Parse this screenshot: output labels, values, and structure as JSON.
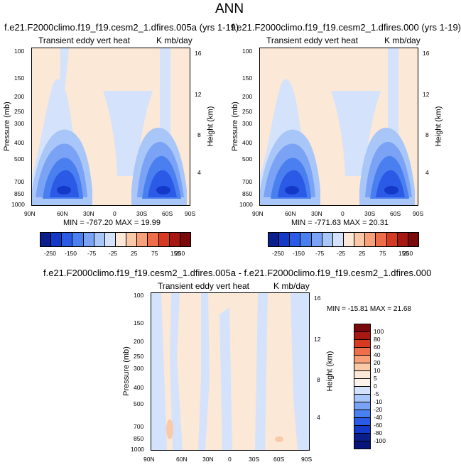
{
  "page_title": "ANN",
  "chart_data": [
    {
      "type": "heatmap",
      "title": "f.e21.F2000climo.f19_f19.cesm2_1.dfires.005a (yrs 1-19)",
      "left_label": "Transient eddy vert heat",
      "right_label": "K mb/day",
      "xlabel": "",
      "ylabel": "Pressure (mb)",
      "y2label": "Height (km)",
      "xticks": [
        "90N",
        "60N",
        "30N",
        "0",
        "30S",
        "60S",
        "90S"
      ],
      "yticks": [
        "100",
        "150",
        "200",
        "250",
        "300",
        "400",
        "500",
        "700",
        "850",
        "1000"
      ],
      "y2ticks": [
        "16",
        "12",
        "8",
        "4"
      ],
      "stats": "MIN = -767.20   MAX = 19.99",
      "min": -767.2,
      "max": 19.99,
      "colorbar_labels": [
        "-250",
        "-150",
        "-75",
        "-25",
        "25",
        "75",
        "150",
        "250"
      ]
    },
    {
      "type": "heatmap",
      "title": "f.e21.F2000climo.f19_f19.cesm2_1.dfires.000 (yrs 1-19)",
      "left_label": "Transient eddy vert heat",
      "right_label": "K mb/day",
      "xlabel": "",
      "ylabel": "Pressure (mb)",
      "y2label": "Height (km)",
      "xticks": [
        "90N",
        "60N",
        "30N",
        "0",
        "30S",
        "60S",
        "90S"
      ],
      "yticks": [
        "100",
        "150",
        "200",
        "250",
        "300",
        "400",
        "500",
        "700",
        "850",
        "1000"
      ],
      "y2ticks": [
        "16",
        "12",
        "8",
        "4"
      ],
      "stats": "MIN = -771.63   MAX = 20.31",
      "min": -771.63,
      "max": 20.31,
      "colorbar_labels": [
        "-250",
        "-150",
        "-75",
        "-25",
        "25",
        "75",
        "150",
        "250"
      ]
    },
    {
      "type": "heatmap",
      "title": "f.e21.F2000climo.f19_f19.cesm2_1.dfires.005a - f.e21.F2000climo.f19_f19.cesm2_1.dfires.000",
      "left_label": "Transient eddy vert heat",
      "right_label": "K mb/day",
      "xlabel": "",
      "ylabel": "Pressure (mb)",
      "y2label": "Height (km)",
      "xticks": [
        "90N",
        "60N",
        "30N",
        "0",
        "30S",
        "60S",
        "90S"
      ],
      "yticks": [
        "100",
        "150",
        "200",
        "250",
        "300",
        "400",
        "500",
        "700",
        "850",
        "1000"
      ],
      "y2ticks": [
        "16",
        "12",
        "8",
        "4"
      ],
      "stats": "MIN = -15.81   MAX = 21.68",
      "min": -15.81,
      "max": 21.68,
      "colorbar_labels": [
        "100",
        "80",
        "60",
        "40",
        "20",
        "10",
        "5",
        "0",
        "-5",
        "-10",
        "-20",
        "-40",
        "-60",
        "-80",
        "-100"
      ]
    }
  ],
  "colors": {
    "abs_scale": [
      "#0a1f8c",
      "#1438c8",
      "#2a5ae6",
      "#4a7ff0",
      "#7aa3f5",
      "#a9c6f9",
      "#d4e3fb",
      "#fbe8d7",
      "#f9c9a8",
      "#f7a07a",
      "#ef6e4a",
      "#d63a22",
      "#a81812",
      "#7a0a0a"
    ],
    "diff_scale": [
      "#7a0a0a",
      "#a81812",
      "#d63a22",
      "#ef6e4a",
      "#f7a07a",
      "#f9c9a8",
      "#fbe8d7",
      "#fdf3ea",
      "#d4e3fb",
      "#a9c6f9",
      "#7aa3f5",
      "#4a7ff0",
      "#2a5ae6",
      "#1438c8",
      "#0a1f8c",
      "#07157a"
    ]
  }
}
